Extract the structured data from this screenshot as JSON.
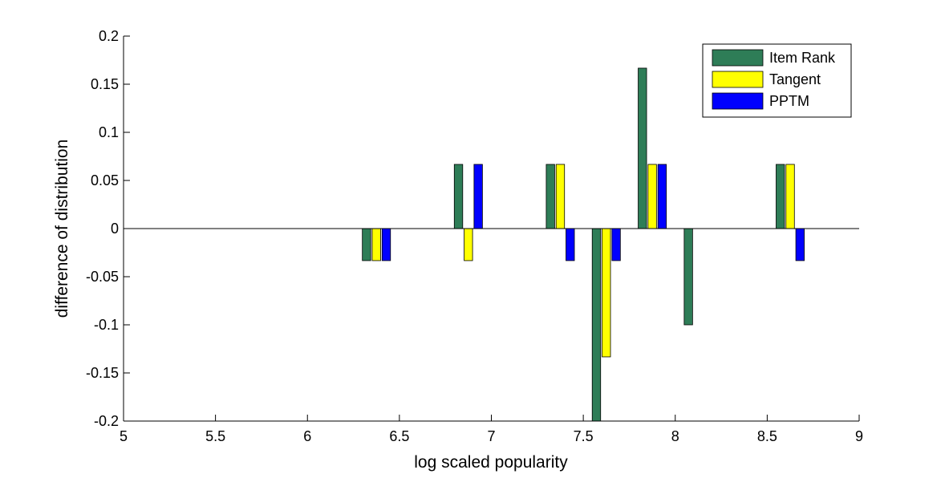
{
  "chart_data": {
    "type": "bar",
    "title": "",
    "xlabel": "log scaled popularity",
    "ylabel": "difference of distribution",
    "xlim": [
      5,
      9
    ],
    "ylim": [
      -0.2,
      0.2
    ],
    "xticks": [
      "5",
      "5.5",
      "6",
      "6.5",
      "7",
      "7.5",
      "8",
      "8.5",
      "9"
    ],
    "xtick_values": [
      5,
      5.5,
      6,
      6.5,
      7,
      7.5,
      8,
      8.5,
      9
    ],
    "yticks": [
      "0.2",
      "0.15",
      "0.1",
      "0.05",
      "0",
      "-0.05",
      "-0.1",
      "-0.15",
      "-0.2"
    ],
    "ytick_values": [
      0.2,
      0.15,
      0.1,
      0.05,
      0,
      -0.05,
      -0.1,
      -0.15,
      -0.2
    ],
    "x": [
      6.375,
      6.875,
      7.375,
      7.625,
      7.875,
      8.125,
      8.625
    ],
    "grid": false,
    "legend_position": "top-right",
    "series": [
      {
        "name": "Item Rank",
        "color": "#2e7d57",
        "values": [
          -0.0333,
          0.0667,
          0.0667,
          -0.2,
          0.1667,
          -0.1,
          0.0667
        ]
      },
      {
        "name": "Tangent",
        "color": "#ffff00",
        "values": [
          -0.0333,
          -0.0333,
          0.0667,
          -0.1333,
          0.0667,
          0,
          0.0667
        ]
      },
      {
        "name": "PPTM",
        "color": "#0000ff",
        "values": [
          -0.0333,
          0.0667,
          -0.0333,
          -0.0333,
          0.0667,
          0,
          -0.0333
        ]
      }
    ]
  }
}
